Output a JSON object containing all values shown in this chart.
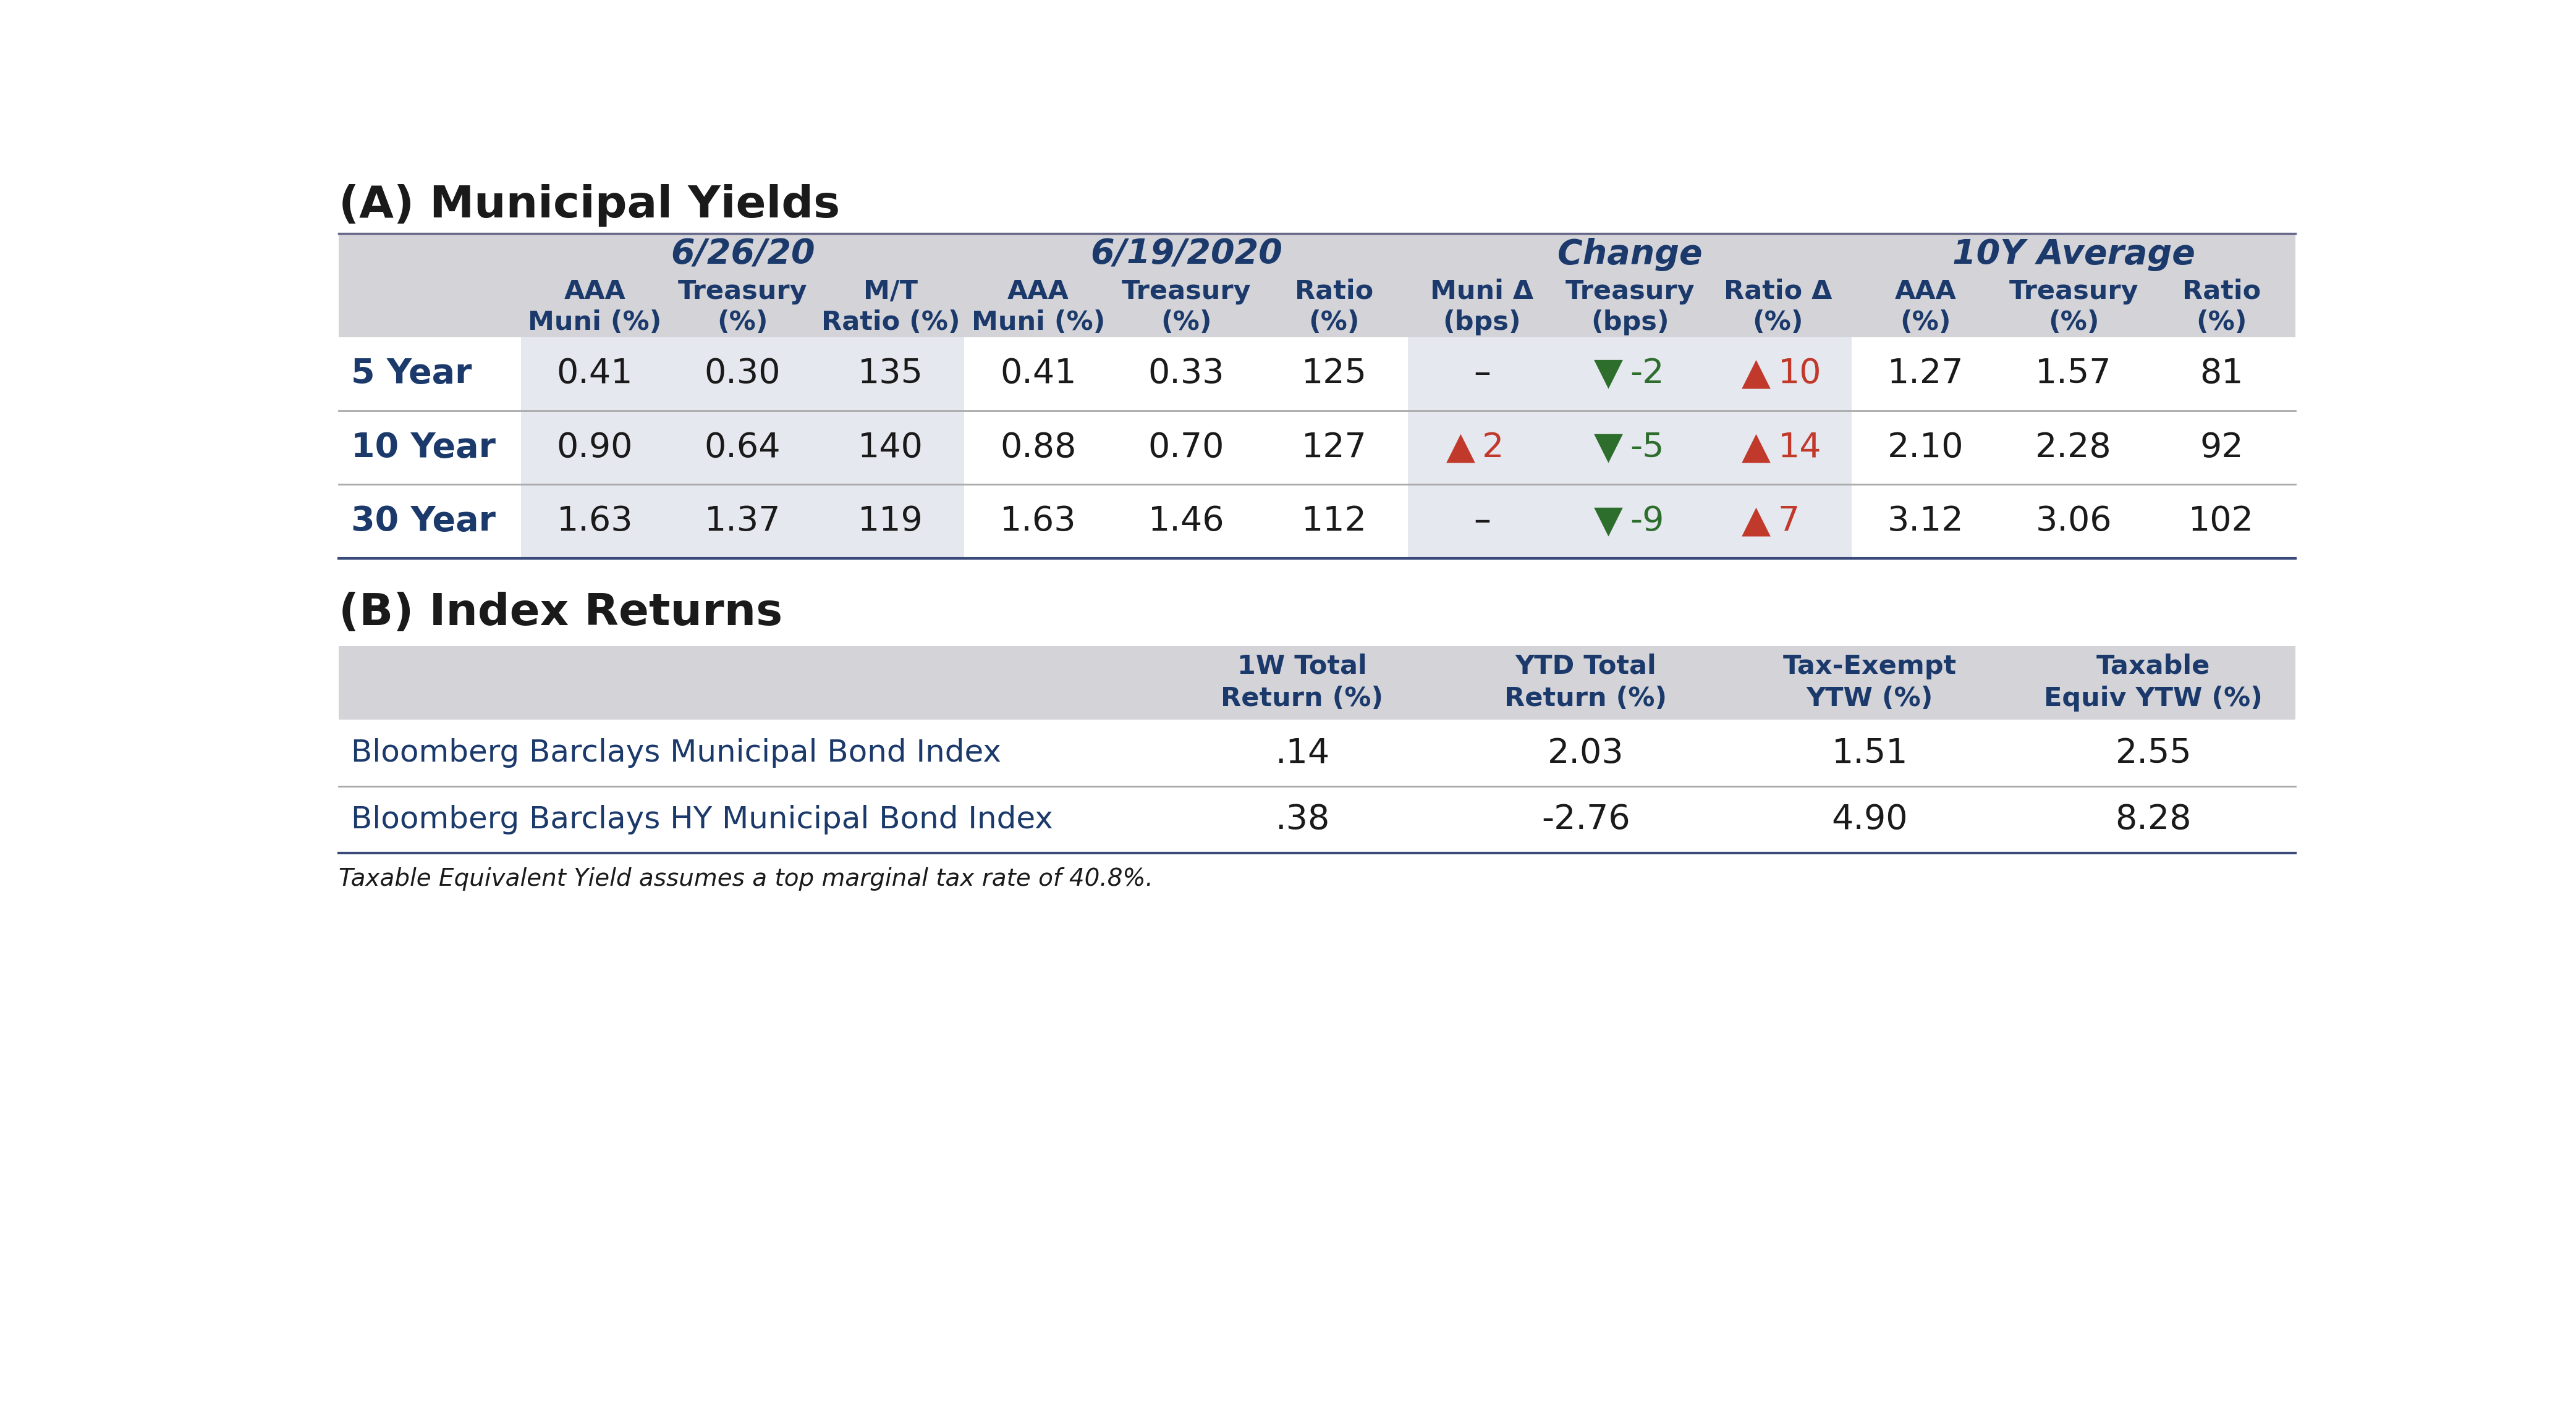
{
  "title_a": "(A) Municipal Yields",
  "title_b": "(B) Index Returns",
  "section_a_header1": "6/26/20",
  "section_a_header2": "6/19/2020",
  "section_a_header3": "Change",
  "section_a_header4": "10Y Average",
  "col_headers_line1": [
    "AAA",
    "Treasury",
    "M/T",
    "AAA",
    "Treasury",
    "Ratio",
    "Muni Δ",
    "Treasury",
    "Ratio Δ",
    "AAA",
    "Treasury",
    "Ratio"
  ],
  "col_headers_line2": [
    "Muni (%)",
    "(%)",
    "Ratio (%)",
    "Muni (%)",
    "(%)",
    "(%)",
    "(bps)",
    "(bps)",
    "(%)",
    "(%)",
    "(%)",
    "(%)"
  ],
  "row_labels": [
    "5 Year",
    "10 Year",
    "30 Year"
  ],
  "row_data": [
    [
      "0.41",
      "0.30",
      "135",
      "0.41",
      "0.33",
      "125",
      "–",
      "▼-2",
      "▲10",
      "1.27",
      "1.57",
      "81"
    ],
    [
      "0.90",
      "0.64",
      "140",
      "0.88",
      "0.70",
      "127",
      "▲2",
      "▼-5",
      "▲14",
      "2.10",
      "2.28",
      "92"
    ],
    [
      "1.63",
      "1.37",
      "119",
      "1.63",
      "1.46",
      "112",
      "–",
      "▼-9",
      "▲7",
      "3.12",
      "3.06",
      "102"
    ]
  ],
  "section_b_col_headers": [
    "1W Total\nReturn (%)",
    "YTD Total\nReturn (%)",
    "Tax-Exempt\nYTW (%)",
    "Taxable\nEquiv YTW (%)"
  ],
  "section_b_rows": [
    [
      "Bloomberg Barclays Municipal Bond Index",
      ".14",
      "2.03",
      "1.51",
      "2.55"
    ],
    [
      "Bloomberg Barclays HY Municipal Bond Index",
      ".38",
      "-2.76",
      "4.90",
      "8.28"
    ]
  ],
  "footnote": "Taxable Equivalent Yield assumes a top marginal tax rate of 40.8%.",
  "bg_color": "#ffffff",
  "header_bg": "#d3d3d8",
  "col_bg_dark": "#d3d3d8",
  "col_bg_light": "#e6e8ef",
  "row_bg_white": "#ffffff",
  "dark_blue": "#1b3a6b",
  "black": "#1a1a1a",
  "red": "#c0392b",
  "green": "#2d6e2d"
}
